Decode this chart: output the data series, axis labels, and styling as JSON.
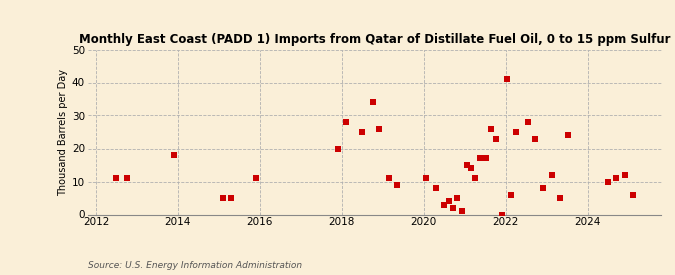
{
  "title": "Monthly East Coast (PADD 1) Imports from Qatar of Distillate Fuel Oil, 0 to 15 ppm Sulfur",
  "ylabel": "Thousand Barrels per Day",
  "source": "Source: U.S. Energy Information Administration",
  "background_color": "#faefd8",
  "plot_background_color": "#faefd8",
  "marker_color": "#cc0000",
  "marker": "s",
  "marker_size": 16,
  "xlim": [
    2011.8,
    2025.8
  ],
  "ylim": [
    0,
    50
  ],
  "yticks": [
    0,
    10,
    20,
    30,
    40,
    50
  ],
  "xticks": [
    2012,
    2014,
    2016,
    2018,
    2020,
    2022,
    2024
  ],
  "data_x": [
    2012.5,
    2012.75,
    2013.9,
    2015.1,
    2015.3,
    2015.9,
    2017.9,
    2018.1,
    2018.5,
    2018.75,
    2018.9,
    2019.15,
    2019.35,
    2020.05,
    2020.3,
    2020.5,
    2020.62,
    2020.72,
    2020.82,
    2020.93,
    2021.05,
    2021.15,
    2021.25,
    2021.38,
    2021.52,
    2021.65,
    2021.75,
    2021.92,
    2022.02,
    2022.12,
    2022.25,
    2022.55,
    2022.72,
    2022.9,
    2023.12,
    2023.32,
    2023.52,
    2024.5,
    2024.7,
    2024.9,
    2025.1
  ],
  "data_y": [
    11,
    11,
    18,
    5,
    5,
    11,
    20,
    28,
    25,
    34,
    26,
    11,
    9,
    11,
    8,
    3,
    4,
    2,
    5,
    1,
    15,
    14,
    11,
    17,
    17,
    26,
    23,
    0,
    41,
    6,
    25,
    28,
    23,
    8,
    12,
    5,
    24,
    10,
    11,
    12,
    6
  ]
}
